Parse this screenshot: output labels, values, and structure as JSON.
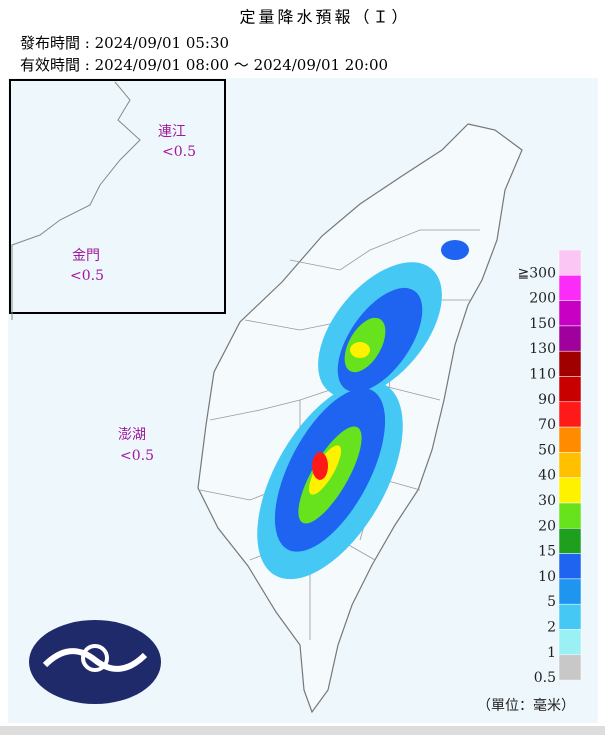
{
  "header": {
    "title": "定量降水預報（Ｉ）",
    "issued": "發布時間 : 2024/09/01 05:30",
    "valid": "有效時間 : 2024/09/01 08:00 ～ 2024/09/01 20:00"
  },
  "islands": [
    {
      "name": "連江",
      "value": "<0.5"
    },
    {
      "name": "金門",
      "value": "<0.5"
    },
    {
      "name": "澎湖",
      "value": "<0.5"
    }
  ],
  "legend": {
    "unit": "（單位：毫米）",
    "items": [
      {
        "label": "≧300",
        "color": "#fbc6f4"
      },
      {
        "label": "200",
        "color": "#fb2cf7"
      },
      {
        "label": "150",
        "color": "#c800c4"
      },
      {
        "label": "130",
        "color": "#a0009c"
      },
      {
        "label": "110",
        "color": "#a00000"
      },
      {
        "label": "90",
        "color": "#c80000"
      },
      {
        "label": "70",
        "color": "#ff1a1a"
      },
      {
        "label": "50",
        "color": "#ff8c00"
      },
      {
        "label": "40",
        "color": "#ffc000"
      },
      {
        "label": "30",
        "color": "#fff200"
      },
      {
        "label": "20",
        "color": "#66e31c"
      },
      {
        "label": "15",
        "color": "#1ea01e"
      },
      {
        "label": "10",
        "color": "#1e64f0"
      },
      {
        "label": "5",
        "color": "#1e96f0"
      },
      {
        "label": "2",
        "color": "#46c8f5"
      },
      {
        "label": "1",
        "color": "#9bf0f5"
      },
      {
        "label": "0.5",
        "color": "#c8c8c8"
      }
    ]
  }
}
